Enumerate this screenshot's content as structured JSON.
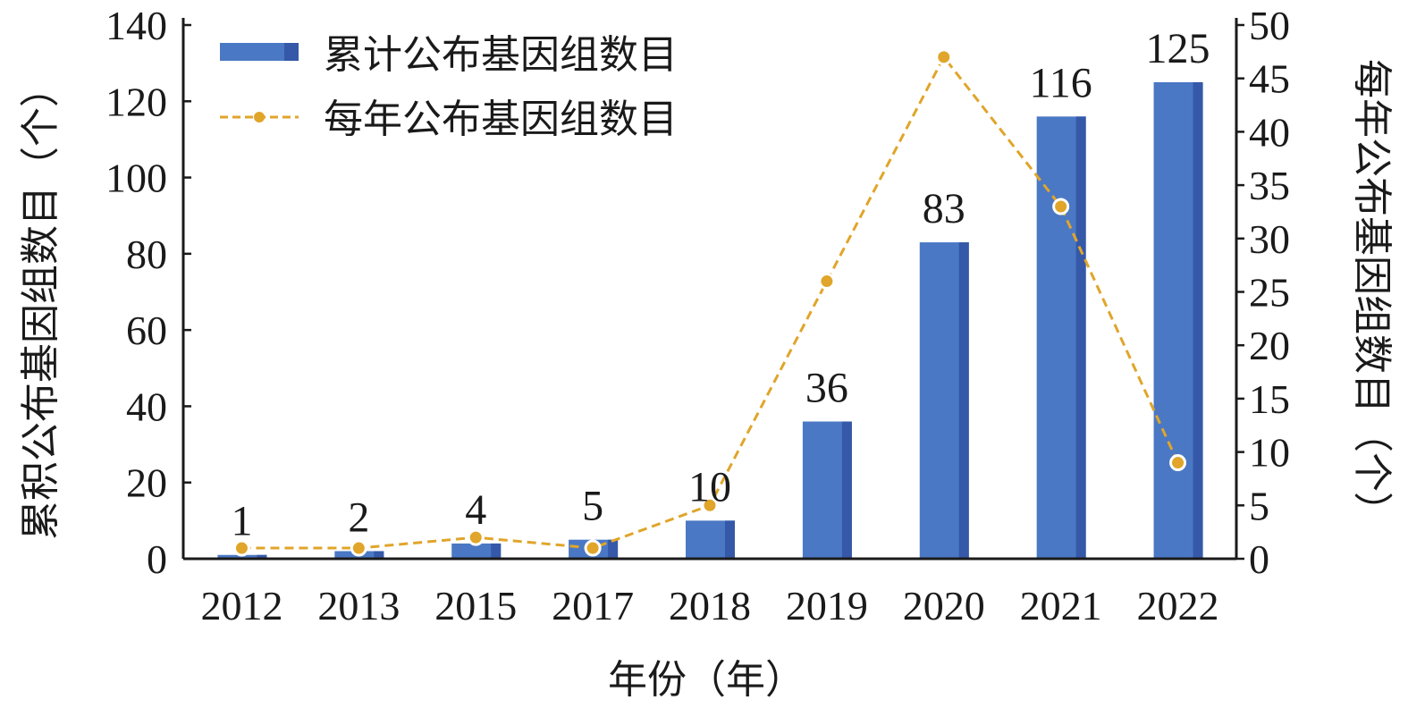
{
  "chart_data": {
    "type": "bar+line",
    "categories": [
      "2012",
      "2013",
      "2015",
      "2017",
      "2018",
      "2019",
      "2020",
      "2021",
      "2022"
    ],
    "series": [
      {
        "name": "累计公布基因组数目",
        "type": "bar",
        "axis": "left",
        "values": [
          1,
          2,
          4,
          5,
          10,
          36,
          83,
          116,
          125
        ],
        "color": "#4a78c4",
        "data_labels": [
          "1",
          "2",
          "4",
          "5",
          "10",
          "36",
          "83",
          "116",
          "125"
        ]
      },
      {
        "name": "每年公布基因组数目",
        "type": "line",
        "axis": "right",
        "style": "dashed",
        "values": [
          1,
          1,
          2,
          1,
          5,
          26,
          47,
          33,
          9
        ],
        "color": "#e0a52a"
      }
    ],
    "xlabel": "年份（年）",
    "ylabel": "累积公布基因组数目（个）",
    "y2label": "每年公布基因组数目（个）",
    "ylim": [
      0,
      140
    ],
    "y2lim": [
      0,
      50
    ],
    "yticks": [
      "0",
      "20",
      "40",
      "60",
      "80",
      "100",
      "120",
      "140"
    ],
    "y2ticks": [
      "0",
      "5",
      "10",
      "15",
      "20",
      "25",
      "30",
      "35",
      "40",
      "45",
      "50"
    ],
    "legend": "top-left",
    "grid": false
  }
}
